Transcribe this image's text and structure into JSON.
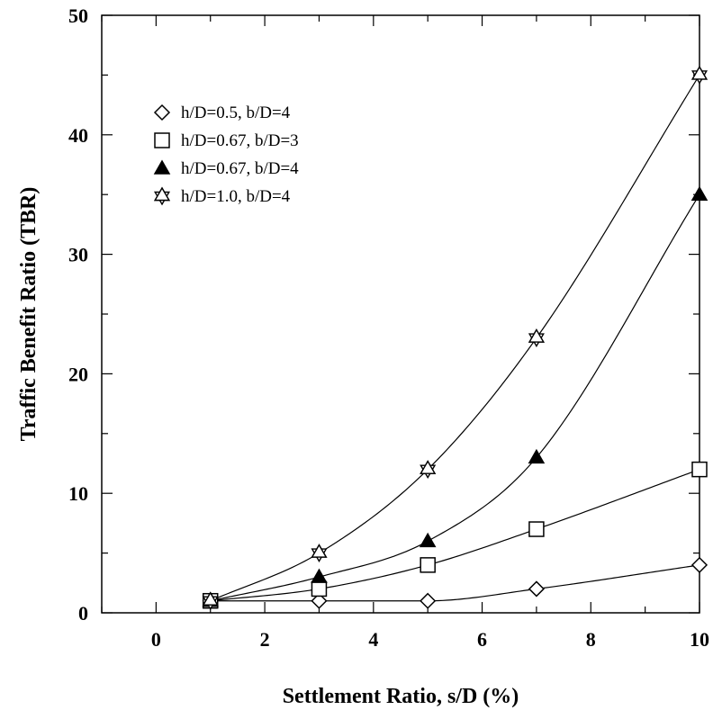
{
  "chart_data": {
    "type": "scatter",
    "title": "",
    "xlabel": "Settlement Ratio, s/D (%)",
    "ylabel": "Traffic Benefit Ratio (TBR)",
    "xlim": [
      -1,
      10
    ],
    "ylim": [
      0,
      50
    ],
    "xticks": [
      0,
      2,
      4,
      6,
      8,
      10
    ],
    "yticks": [
      0,
      10,
      20,
      30,
      40,
      50
    ],
    "grid": false,
    "legend_position": "top-left",
    "series": [
      {
        "name": "h/D=0.5, b/D=4",
        "marker": "diamond",
        "fill": "none",
        "x": [
          1,
          3,
          5,
          7,
          10
        ],
        "y": [
          1,
          1,
          1,
          2,
          4
        ]
      },
      {
        "name": "h/D=0.67, b/D=3",
        "marker": "square",
        "fill": "none",
        "x": [
          1,
          3,
          5,
          7,
          10
        ],
        "y": [
          1,
          2,
          4,
          7,
          12
        ]
      },
      {
        "name": "h/D=0.67, b/D=4",
        "marker": "triangle",
        "fill": "#000000",
        "x": [
          1,
          3,
          5,
          7,
          10
        ],
        "y": [
          1,
          3,
          6,
          13,
          35
        ]
      },
      {
        "name": "h/D=1.0, b/D=4",
        "marker": "star",
        "fill": "none",
        "x": [
          1,
          3,
          5,
          7,
          10
        ],
        "y": [
          1,
          5,
          12,
          23,
          45
        ]
      }
    ]
  }
}
